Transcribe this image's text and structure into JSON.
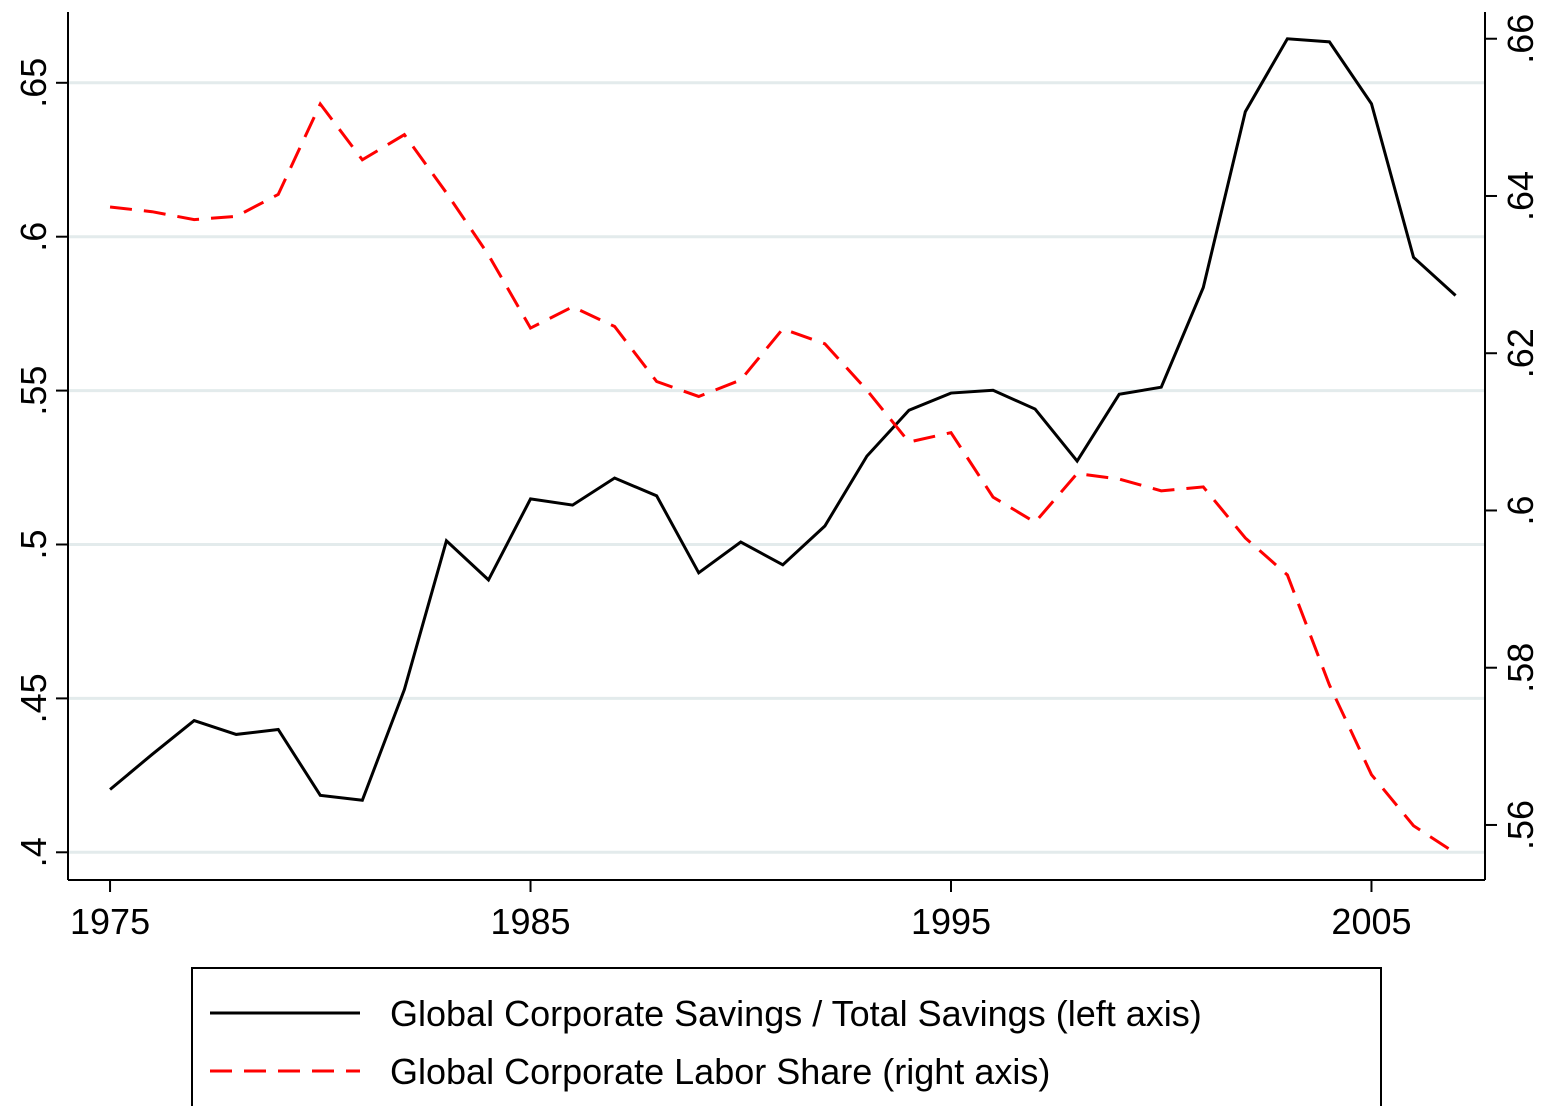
{
  "chart_data": {
    "type": "line",
    "x": [
      1975,
      1976,
      1977,
      1978,
      1979,
      1980,
      1981,
      1982,
      1983,
      1984,
      1985,
      1986,
      1987,
      1988,
      1989,
      1990,
      1991,
      1992,
      1993,
      1994,
      1995,
      1996,
      1997,
      1998,
      1999,
      2000,
      2001,
      2002,
      2003,
      2004,
      2005,
      2006,
      2007
    ],
    "series": [
      {
        "name": "Global Corporate Savings / Total Savings (left axis)",
        "color": "#000000",
        "dash": "solid",
        "values": [
          0.4204,
          0.4318,
          0.4428,
          0.4383,
          0.4399,
          0.4185,
          0.4169,
          0.4529,
          0.5012,
          0.4885,
          0.5148,
          0.5128,
          0.5216,
          0.5158,
          0.4908,
          0.5008,
          0.4934,
          0.506,
          0.5287,
          0.5436,
          0.5492,
          0.5501,
          0.544,
          0.5271,
          0.5488,
          0.5511,
          0.5835,
          0.6406,
          0.6643,
          0.6633,
          0.6432,
          0.5933,
          0.5809
        ]
      },
      {
        "name": "Global Corporate Labor Share (right axis)",
        "color": "#ff0000",
        "dash": "dashed",
        "axis": "y2",
        "values": [
          0.6386,
          0.638,
          0.637,
          0.6374,
          0.6402,
          0.6517,
          0.6446,
          0.6478,
          0.6404,
          0.6325,
          0.6232,
          0.6259,
          0.6234,
          0.6164,
          0.6145,
          0.6166,
          0.6231,
          0.6212,
          0.6153,
          0.6087,
          0.6099,
          0.6017,
          0.5985,
          0.6047,
          0.604,
          0.6025,
          0.603,
          0.5965,
          0.5918,
          0.5778,
          0.5664,
          0.5599,
          0.5564
        ]
      }
    ],
    "xlim": [
      1974,
      2007.7
    ],
    "xticks": [
      1975,
      1985,
      1995,
      2005
    ],
    "ylim": [
      0.391,
      0.673
    ],
    "yticks": [
      {
        "value": 0.4,
        "label": ".4"
      },
      {
        "value": 0.45,
        "label": ".45"
      },
      {
        "value": 0.5,
        "label": ".5"
      },
      {
        "value": 0.55,
        "label": ".55"
      },
      {
        "value": 0.6,
        "label": ".6"
      },
      {
        "value": 0.65,
        "label": ".65"
      }
    ],
    "y2lim": [
      0.553,
      0.6634
    ],
    "y2ticks": [
      {
        "value": 0.56,
        "label": ".56"
      },
      {
        "value": 0.58,
        "label": ".58"
      },
      {
        "value": 0.6,
        "label": ".6"
      },
      {
        "value": 0.62,
        "label": ".62"
      },
      {
        "value": 0.64,
        "label": ".64"
      },
      {
        "value": 0.66,
        "label": ".66"
      }
    ],
    "grid": true,
    "legend": "bottom"
  }
}
